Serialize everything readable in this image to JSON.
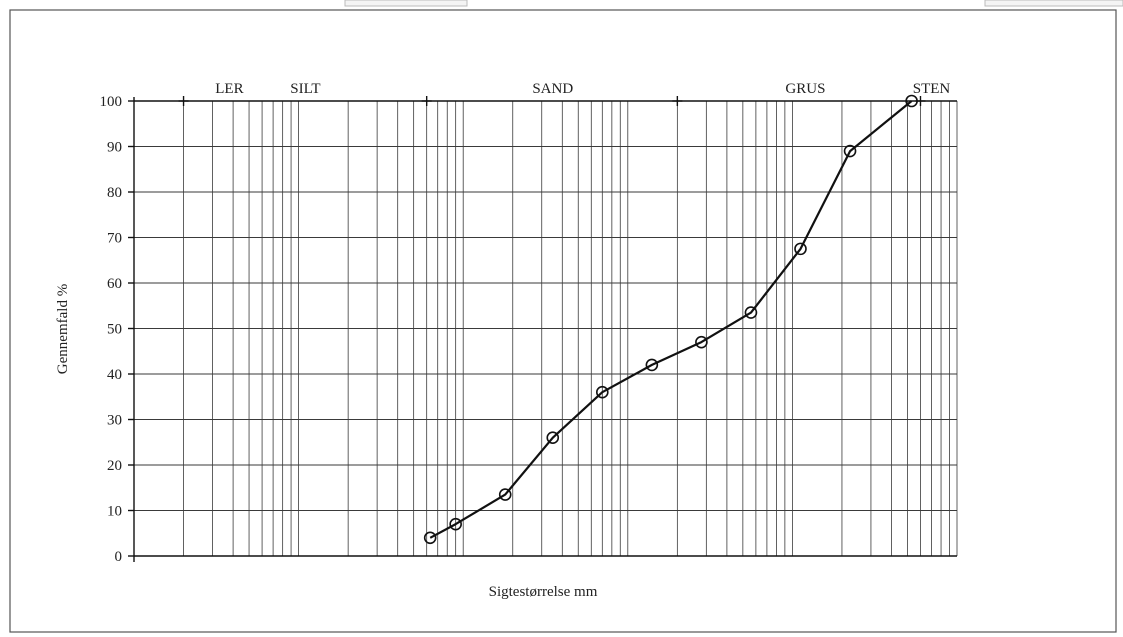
{
  "chart_data": {
    "type": "line",
    "ylabel": "Gennemfald %",
    "xlabel": "Sigtestørrelse mm",
    "x_scale": "log",
    "ylim": [
      0,
      100
    ],
    "yticks": [
      "0",
      "10",
      "20",
      "30",
      "40",
      "50",
      "60",
      "70",
      "80",
      "90",
      "100"
    ],
    "grid": true,
    "zones": [
      {
        "name": "LER"
      },
      {
        "name": "SILT"
      },
      {
        "name": "SAND"
      },
      {
        "name": "GRUS"
      },
      {
        "name": "STEN"
      }
    ],
    "series": [
      {
        "x": [
          0.063,
          0.09,
          0.18,
          0.35,
          0.7,
          1.4,
          2.8,
          5.6,
          11.2,
          22.4,
          53
        ],
        "values": [
          4,
          7,
          13.5,
          26,
          36,
          42,
          47,
          53.5,
          67.5,
          89,
          100
        ]
      }
    ]
  }
}
